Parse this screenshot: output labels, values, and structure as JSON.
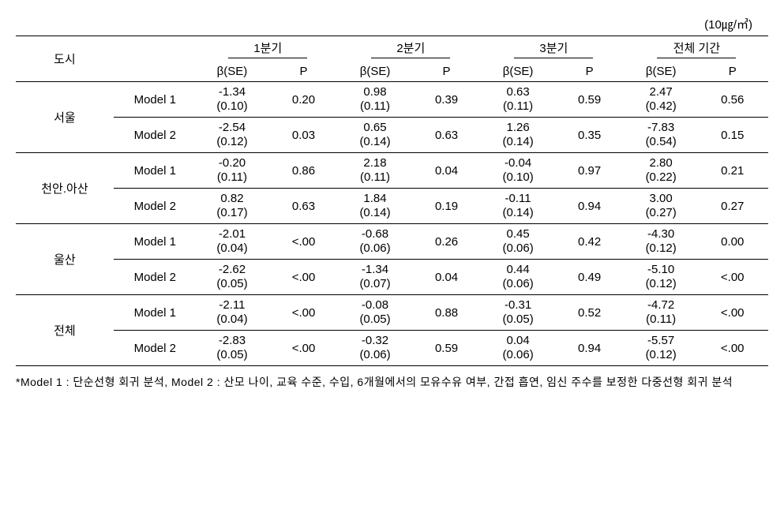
{
  "unit_label": "(10㎍/㎥)",
  "headers": {
    "city": "도시",
    "periods": [
      "1분기",
      "2분기",
      "3분기",
      "전체 기간"
    ],
    "beta_se": "β(SE)",
    "p": "P"
  },
  "cities": [
    {
      "name": "서울",
      "models": [
        {
          "label": "Model 1",
          "cells": [
            {
              "beta": "-1.34",
              "se": "(0.10)",
              "p": "0.20"
            },
            {
              "beta": "0.98",
              "se": "(0.11)",
              "p": "0.39"
            },
            {
              "beta": "0.63",
              "se": "(0.11)",
              "p": "0.59"
            },
            {
              "beta": "2.47",
              "se": "(0.42)",
              "p": "0.56"
            }
          ]
        },
        {
          "label": "Model 2",
          "cells": [
            {
              "beta": "-2.54",
              "se": "(0.12)",
              "p": "0.03"
            },
            {
              "beta": "0.65",
              "se": "(0.14)",
              "p": "0.63"
            },
            {
              "beta": "1.26",
              "se": "(0.14)",
              "p": "0.35"
            },
            {
              "beta": "-7.83",
              "se": "(0.54)",
              "p": "0.15"
            }
          ]
        }
      ]
    },
    {
      "name": "천안.아산",
      "models": [
        {
          "label": "Model 1",
          "cells": [
            {
              "beta": "-0.20",
              "se": "(0.11)",
              "p": "0.86"
            },
            {
              "beta": "2.18",
              "se": "(0.11)",
              "p": "0.04"
            },
            {
              "beta": "-0.04",
              "se": "(0.10)",
              "p": "0.97"
            },
            {
              "beta": "2.80",
              "se": "(0.22)",
              "p": "0.21"
            }
          ]
        },
        {
          "label": "Model 2",
          "cells": [
            {
              "beta": "0.82",
              "se": "(0.17)",
              "p": "0.63"
            },
            {
              "beta": "1.84",
              "se": "(0.14)",
              "p": "0.19"
            },
            {
              "beta": "-0.11",
              "se": "(0.14)",
              "p": "0.94"
            },
            {
              "beta": "3.00",
              "se": "(0.27)",
              "p": "0.27"
            }
          ]
        }
      ]
    },
    {
      "name": "울산",
      "models": [
        {
          "label": "Model 1",
          "cells": [
            {
              "beta": "-2.01",
              "se": "(0.04)",
              "p": "<.00"
            },
            {
              "beta": "-0.68",
              "se": "(0.06)",
              "p": "0.26"
            },
            {
              "beta": "0.45",
              "se": "(0.06)",
              "p": "0.42"
            },
            {
              "beta": "-4.30",
              "se": "(0.12)",
              "p": "0.00"
            }
          ]
        },
        {
          "label": "Model 2",
          "cells": [
            {
              "beta": "-2.62",
              "se": "(0.05)",
              "p": "<.00"
            },
            {
              "beta": "-1.34",
              "se": "(0.07)",
              "p": "0.04"
            },
            {
              "beta": "0.44",
              "se": "(0.06)",
              "p": "0.49"
            },
            {
              "beta": "-5.10",
              "se": "(0.12)",
              "p": "<.00"
            }
          ]
        }
      ]
    },
    {
      "name": "전체",
      "models": [
        {
          "label": "Model 1",
          "cells": [
            {
              "beta": "-2.11",
              "se": "(0.04)",
              "p": "<.00"
            },
            {
              "beta": "-0.08",
              "se": "(0.05)",
              "p": "0.88"
            },
            {
              "beta": "-0.31",
              "se": "(0.05)",
              "p": "0.52"
            },
            {
              "beta": "-4.72",
              "se": "(0.11)",
              "p": "<.00"
            }
          ]
        },
        {
          "label": "Model 2",
          "cells": [
            {
              "beta": "-2.83",
              "se": "(0.05)",
              "p": "<.00"
            },
            {
              "beta": "-0.32",
              "se": "(0.06)",
              "p": "0.59"
            },
            {
              "beta": "0.04",
              "se": "(0.06)",
              "p": "0.94"
            },
            {
              "beta": "-5.57",
              "se": "(0.12)",
              "p": "<.00"
            }
          ]
        }
      ]
    }
  ],
  "footnote": "*Model 1 : 단순선형 회귀 분석, Model 2 : 산모 나이, 교육 수준, 수입, 6개월에서의 모유수유 여부, 간접 흡연, 임신 주수를 보정한 다중선형 회귀 분석"
}
